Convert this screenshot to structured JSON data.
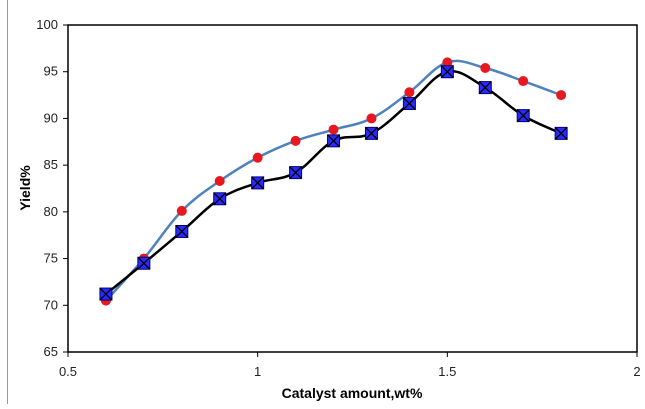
{
  "chart_data": {
    "type": "line",
    "title": "",
    "xlabel": "Catalyst amount,wt%",
    "ylabel": "Yield%",
    "xlim": [
      0.5,
      2
    ],
    "ylim": [
      65,
      100
    ],
    "x_ticks": [
      0.5,
      1,
      1.5,
      2
    ],
    "x_tick_labels": [
      "0.5",
      "1",
      "1.5",
      "2"
    ],
    "y_ticks": [
      65,
      70,
      75,
      80,
      85,
      90,
      95,
      100
    ],
    "y_tick_labels": [
      "65",
      "70",
      "75",
      "80",
      "85",
      "90",
      "95",
      "100"
    ],
    "grid": false,
    "legend": "none",
    "x": [
      0.6,
      0.7,
      0.8,
      0.9,
      1.0,
      1.1,
      1.2,
      1.3,
      1.4,
      1.5,
      1.6,
      1.7,
      1.8
    ],
    "series": [
      {
        "marker": "circle",
        "line_color": "#4f81bd",
        "marker_color": "#e8191e",
        "values": [
          70.5,
          75.0,
          80.1,
          83.3,
          85.8,
          87.6,
          88.8,
          90.0,
          92.8,
          96.0,
          95.4,
          94.0,
          92.5
        ]
      },
      {
        "marker": "square-x",
        "line_color": "#000000",
        "marker_color": "#2a2aff",
        "values": [
          71.2,
          74.5,
          77.9,
          81.4,
          83.1,
          84.2,
          87.6,
          88.4,
          91.6,
          95.0,
          93.3,
          90.3,
          88.4
        ]
      }
    ]
  }
}
